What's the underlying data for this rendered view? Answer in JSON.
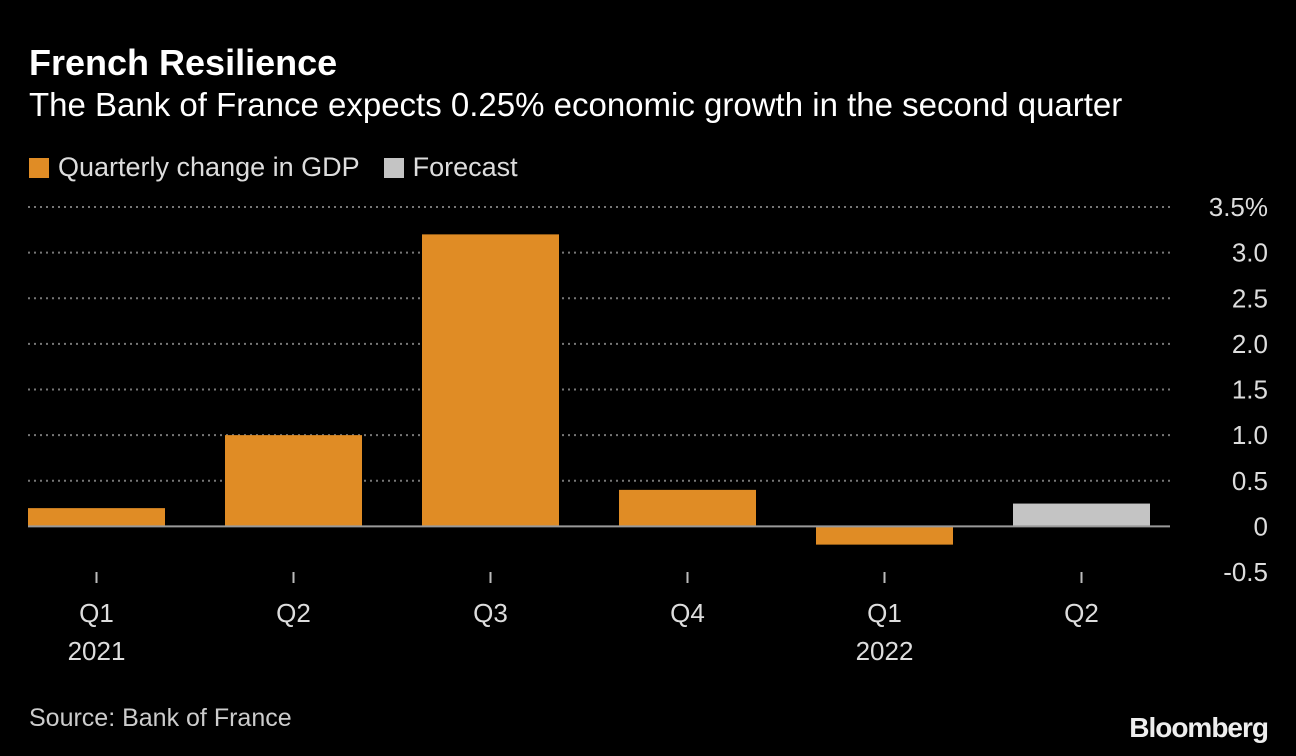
{
  "title": "French Resilience",
  "subtitle": "The Bank of France expects 0.25% economic growth in the second quarter",
  "legend": [
    {
      "label": "Quarterly change in GDP",
      "color": "#e08c25"
    },
    {
      "label": "Forecast",
      "color": "#c4c4c4"
    }
  ],
  "source": "Source: Bank of France",
  "logo": "Bloomberg",
  "chart_data": {
    "type": "bar",
    "categories": [
      "Q1 2021",
      "Q2 2021",
      "Q3 2021",
      "Q4 2021",
      "Q1 2022",
      "Q2 2022"
    ],
    "tick_labels": [
      [
        "Q1",
        "2021"
      ],
      [
        "Q2",
        ""
      ],
      [
        "Q3",
        ""
      ],
      [
        "Q4",
        ""
      ],
      [
        "Q1",
        "2022"
      ],
      [
        "Q2",
        ""
      ]
    ],
    "series": [
      {
        "name": "Quarterly change in GDP",
        "values": [
          0.2,
          1.0,
          3.2,
          0.4,
          -0.2,
          null
        ],
        "color": "#e08c25"
      },
      {
        "name": "Forecast",
        "values": [
          null,
          null,
          null,
          null,
          null,
          0.25
        ],
        "color": "#c4c4c4"
      }
    ],
    "ylim": [
      -0.5,
      3.5
    ],
    "yticks": [
      -0.5,
      0,
      0.5,
      1.0,
      1.5,
      2.0,
      2.5,
      3.0,
      3.5
    ],
    "ytick_labels": [
      "-0.5",
      "0",
      "0.5",
      "1.0",
      "1.5",
      "2.0",
      "2.5",
      "3.0",
      "3.5%"
    ],
    "y_axis_position": "right",
    "grid": true
  }
}
